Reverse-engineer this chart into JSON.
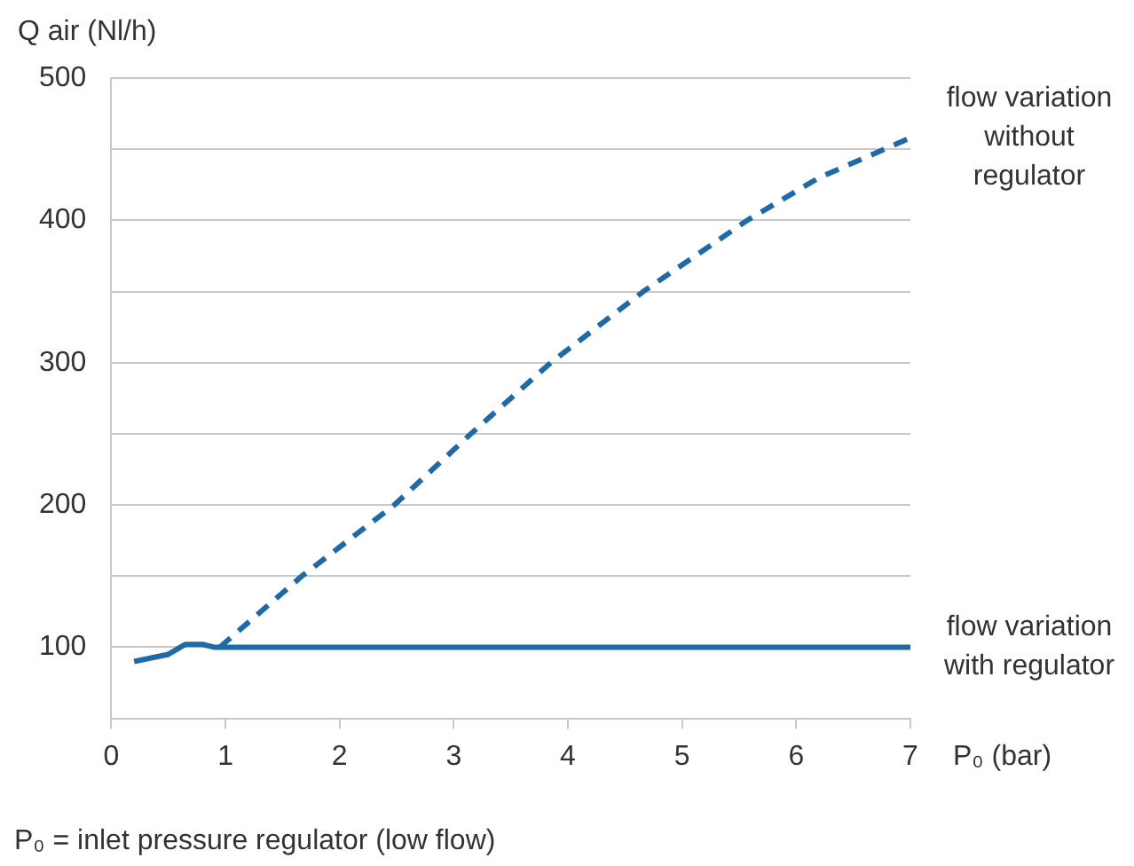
{
  "chart_data": {
    "type": "line",
    "ylabel": "Q air (Nl/h)",
    "xlabel": "P₀ (bar)",
    "annotations": [
      "P₀ = inlet pressure regulator (low flow)"
    ],
    "xlim": [
      0,
      7
    ],
    "xticks": [
      0,
      1,
      2,
      3,
      4,
      5,
      6,
      7
    ],
    "ylim": [
      50,
      500
    ],
    "yticks": [
      {
        "value": 50,
        "label": null
      },
      100,
      {
        "value": 150,
        "label": null
      },
      200,
      {
        "value": 250,
        "label": null
      },
      300,
      {
        "value": 350,
        "label": null
      },
      400,
      {
        "value": 450,
        "label": null
      },
      500
    ],
    "grid": "y",
    "legend": false,
    "marker": "none",
    "series": [
      {
        "name": "flow variation without regulator",
        "color": "#1f6aa6",
        "line_style": "dashed",
        "x": [
          0.95,
          1.67,
          2.48,
          3.15,
          3.85,
          4.66,
          5.57,
          6.2,
          7
        ],
        "values": [
          100,
          150,
          200,
          250,
          300,
          350,
          400,
          430,
          458
        ]
      },
      {
        "name": "flow variation with regulator",
        "color": "#1f6aa6",
        "line_style": "solid",
        "x": [
          0.2,
          0.5,
          0.65,
          0.8,
          0.9,
          7
        ],
        "values": [
          90,
          95,
          102,
          102,
          100,
          100
        ]
      }
    ]
  }
}
